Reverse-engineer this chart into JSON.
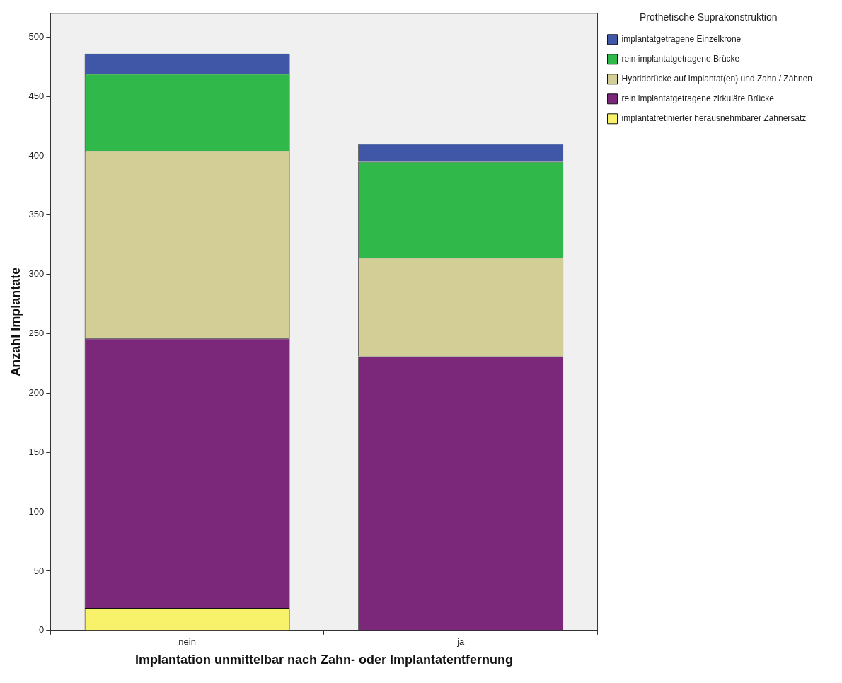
{
  "chart_data": {
    "type": "bar",
    "stacked": true,
    "xlabel": "Implantation unmittelbar nach Zahn- oder Implantatentfernung",
    "ylabel": "Anzahl Implantate",
    "legend_title": "Prothetische Suprakonstruktion",
    "legend": "right",
    "grid": false,
    "categories": [
      "nein",
      "ja"
    ],
    "ylim": [
      0,
      520
    ],
    "yticks": [
      0,
      50,
      100,
      150,
      200,
      250,
      300,
      350,
      400,
      450,
      500
    ],
    "series": [
      {
        "name": "implantatretinierter herausnehmbarer Zahnersatz",
        "color": "#f8f26b",
        "values": [
          19,
          null
        ]
      },
      {
        "name": "rein implantatgetragene zirkuläre Brücke",
        "color": "#7b287b",
        "values": [
          227,
          231
        ]
      },
      {
        "name": "Hybridbrücke auf Implantat(en) und Zahn / Zähnen",
        "color": "#d3cd96",
        "values": [
          158,
          83
        ]
      },
      {
        "name": "rein implantatgetragene Brücke",
        "color": "#30b84a",
        "values": [
          65,
          81
        ]
      },
      {
        "name": "implantatgetragene Einzelkrone",
        "color": "#3f57a6",
        "values": [
          17,
          15
        ]
      }
    ]
  }
}
